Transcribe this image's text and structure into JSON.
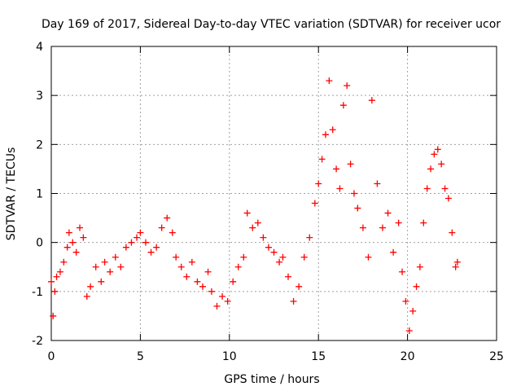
{
  "chart_data": {
    "type": "scatter",
    "title": "Day 169 of 2017, Sidereal Day-to-day VTEC variation (SDTVAR) for receiver ucor",
    "xlabel": "GPS time / hours",
    "ylabel": "SDTVAR / TECUs",
    "xlim": [
      0,
      25
    ],
    "ylim": [
      -2,
      4
    ],
    "grid": true,
    "xticks": [
      0,
      5,
      10,
      15,
      20,
      25
    ],
    "yticks": [
      -2,
      -1,
      0,
      1,
      2,
      3,
      4
    ],
    "xtick_labels": [
      "0",
      "5",
      "10",
      "15",
      "20",
      "25"
    ],
    "ytick_labels": [
      "-2",
      "-1",
      "0",
      "1",
      "2",
      "3",
      "4"
    ],
    "marker": "plus",
    "series": [
      {
        "name": "SDTVAR",
        "color": "#ff0000",
        "x": [
          0.0,
          0.1,
          0.2,
          0.3,
          0.5,
          0.7,
          0.9,
          1.0,
          1.2,
          1.4,
          1.6,
          1.8,
          2.0,
          2.2,
          2.5,
          2.8,
          3.0,
          3.3,
          3.6,
          3.9,
          4.2,
          4.5,
          4.8,
          5.0,
          5.3,
          5.6,
          5.9,
          6.2,
          6.5,
          6.8,
          7.0,
          7.3,
          7.6,
          7.9,
          8.2,
          8.5,
          8.8,
          9.0,
          9.3,
          9.6,
          9.9,
          10.2,
          10.5,
          10.8,
          11.0,
          11.3,
          11.6,
          11.9,
          12.2,
          12.5,
          12.8,
          13.0,
          13.3,
          13.6,
          13.9,
          14.2,
          14.5,
          14.8,
          15.0,
          15.2,
          15.4,
          15.6,
          15.8,
          16.0,
          16.2,
          16.4,
          16.6,
          16.8,
          17.0,
          17.2,
          17.5,
          17.8,
          18.0,
          18.3,
          18.6,
          18.9,
          19.2,
          19.5,
          19.7,
          19.9,
          20.1,
          20.3,
          20.5,
          20.7,
          20.9,
          21.1,
          21.3,
          21.5,
          21.7,
          21.9,
          22.1,
          22.3,
          22.5,
          22.7,
          22.8
        ],
        "y": [
          -0.8,
          -1.5,
          -1.0,
          -0.7,
          -0.6,
          -0.4,
          -0.1,
          0.2,
          0.0,
          -0.2,
          0.3,
          0.1,
          -1.1,
          -0.9,
          -0.5,
          -0.8,
          -0.4,
          -0.6,
          -0.3,
          -0.5,
          -0.1,
          0.0,
          0.1,
          0.2,
          0.0,
          -0.2,
          -0.1,
          0.3,
          0.5,
          0.2,
          -0.3,
          -0.5,
          -0.7,
          -0.4,
          -0.8,
          -0.9,
          -0.6,
          -1.0,
          -1.3,
          -1.1,
          -1.2,
          -0.8,
          -0.5,
          -0.3,
          0.6,
          0.3,
          0.4,
          0.1,
          -0.1,
          -0.2,
          -0.4,
          -0.3,
          -0.7,
          -1.2,
          -0.9,
          -0.3,
          0.1,
          0.8,
          1.2,
          1.7,
          2.2,
          3.3,
          2.3,
          1.5,
          1.1,
          2.8,
          3.2,
          1.6,
          1.0,
          0.7,
          0.3,
          -0.3,
          2.9,
          1.2,
          0.3,
          0.6,
          -0.2,
          0.4,
          -0.6,
          -1.2,
          -1.8,
          -1.4,
          -0.9,
          -0.5,
          0.4,
          1.1,
          1.5,
          1.8,
          1.9,
          1.6,
          1.1,
          0.9,
          0.2,
          -0.5,
          -0.4
        ]
      }
    ]
  }
}
